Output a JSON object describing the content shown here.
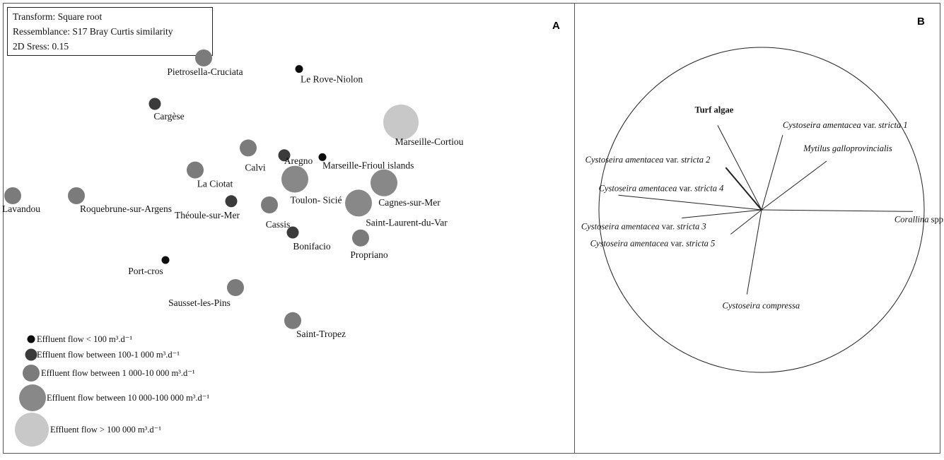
{
  "chart_data": [
    {
      "panel": "A",
      "type": "scatter",
      "info_box": [
        "Transform:  Square root",
        "Ressemblance: S17 Bray Curtis similarity",
        "2D Sress: 0.15"
      ],
      "colors": {
        "lt100": "#0d0d0d",
        "c100_1000": "#3b3b3b",
        "c1000_10000": "#7b7b7b",
        "c10000_100000": "#888888",
        "gt100000": "#c8c8c8"
      },
      "sites": [
        {
          "name": "Pietrosella-Cruciata",
          "x": -0.38,
          "y": 0.8,
          "flow_class": "c1000_10000"
        },
        {
          "name": "Le Rove-Niolon",
          "x": 0.07,
          "y": 0.74,
          "flow_class": "lt100"
        },
        {
          "name": "Cargèse",
          "x": -0.61,
          "y": 0.55,
          "flow_class": "c100_1000"
        },
        {
          "name": "Marseille-Cortiou",
          "x": 0.55,
          "y": 0.45,
          "flow_class": "gt100000"
        },
        {
          "name": "Calvi",
          "x": -0.17,
          "y": 0.31,
          "flow_class": "c1000_10000"
        },
        {
          "name": "Aregno",
          "x": 0.0,
          "y": 0.27,
          "flow_class": "c100_1000"
        },
        {
          "name": "Marseille-Frioul islands",
          "x": 0.18,
          "y": 0.26,
          "flow_class": "lt100"
        },
        {
          "name": "La Ciotat",
          "x": -0.42,
          "y": 0.19,
          "flow_class": "c1000_10000"
        },
        {
          "name": "Toulon- Sicié",
          "x": 0.05,
          "y": 0.14,
          "flow_class": "c10000_100000"
        },
        {
          "name": "Cagnes-sur-Mer",
          "x": 0.47,
          "y": 0.12,
          "flow_class": "c10000_100000"
        },
        {
          "name": "Lavandou",
          "x": -1.28,
          "y": 0.05,
          "flow_class": "c1000_10000"
        },
        {
          "name": "Roquebrune-sur-Argens",
          "x": -0.98,
          "y": 0.05,
          "flow_class": "c1000_10000"
        },
        {
          "name": "Théoule-sur-Mer",
          "x": -0.25,
          "y": 0.02,
          "flow_class": "c100_1000"
        },
        {
          "name": "Cassis",
          "x": -0.07,
          "y": 0.0,
          "flow_class": "c1000_10000"
        },
        {
          "name": "Saint-Laurent-du-Var",
          "x": 0.35,
          "y": 0.01,
          "flow_class": "c10000_100000"
        },
        {
          "name": "Bonifacio",
          "x": 0.04,
          "y": -0.15,
          "flow_class": "c100_1000"
        },
        {
          "name": "Propriano",
          "x": 0.36,
          "y": -0.18,
          "flow_class": "c1000_10000"
        },
        {
          "name": "Port-cros",
          "x": -0.56,
          "y": -0.3,
          "flow_class": "lt100"
        },
        {
          "name": "Sausset-les-Pins",
          "x": -0.23,
          "y": -0.45,
          "flow_class": "c1000_10000"
        },
        {
          "name": "Saint-Tropez",
          "x": 0.04,
          "y": -0.63,
          "flow_class": "c1000_10000"
        }
      ],
      "legend": [
        {
          "flow_class": "lt100",
          "label": "Effluent flow  < 100 m³.d⁻¹"
        },
        {
          "flow_class": "c100_1000",
          "label": "Effluent flow between 100-1 000 m³.d⁻¹"
        },
        {
          "flow_class": "c1000_10000",
          "label": "Effluent flow between 1 000-10 000 m³.d⁻¹"
        },
        {
          "flow_class": "c10000_100000",
          "label": "Effluent flow between 10 000-100 000 m³.d⁻¹"
        },
        {
          "flow_class": "gt100000",
          "label": "Effluent flow  > 100 000 m³.d⁻¹"
        }
      ]
    },
    {
      "panel": "B",
      "type": "vector",
      "circle_radius": 1.0,
      "vectors": [
        {
          "parts": [
            [
              "Turf algae",
              "bold"
            ]
          ],
          "x": -0.27,
          "y": 0.52
        },
        {
          "parts": [
            [
              "Cystoseira amentacea",
              "it"
            ],
            [
              " var. ",
              "up"
            ],
            [
              "stricta 1",
              "it"
            ]
          ],
          "x": 0.13,
          "y": 0.46
        },
        {
          "parts": [
            [
              "Mytilus galloprovincialis",
              "it"
            ]
          ],
          "x": 0.4,
          "y": 0.3
        },
        {
          "parts": [
            [
              "Cystoseira amentacea",
              "it"
            ],
            [
              " var. ",
              "up"
            ],
            [
              "stricta 2",
              "it"
            ]
          ],
          "x": -0.22,
          "y": 0.26
        },
        {
          "parts": [
            [
              "Cystoseira amentacea",
              "it"
            ],
            [
              " var. ",
              "up"
            ],
            [
              "stricta 4",
              "it"
            ]
          ],
          "x": -0.88,
          "y": 0.09
        },
        {
          "parts": [
            [
              "Corallina",
              "it"
            ],
            [
              " spp.",
              "up"
            ]
          ],
          "x": 0.93,
          "y": -0.01
        },
        {
          "parts": [
            [
              "Cystoseira amentacea",
              "it"
            ],
            [
              " var. ",
              "up"
            ],
            [
              "stricta 3",
              "it"
            ]
          ],
          "x": -0.49,
          "y": -0.05
        },
        {
          "parts": [
            [
              "Cystoseira amentacea",
              "it"
            ],
            [
              " var. ",
              "up"
            ],
            [
              "stricta 5",
              "it"
            ]
          ],
          "x": -0.19,
          "y": -0.15
        },
        {
          "parts": [
            [
              "Cystoseira compressa",
              "it"
            ]
          ],
          "x": -0.09,
          "y": -0.52
        }
      ]
    }
  ],
  "panel_letters": {
    "a": "A",
    "b": "B"
  }
}
